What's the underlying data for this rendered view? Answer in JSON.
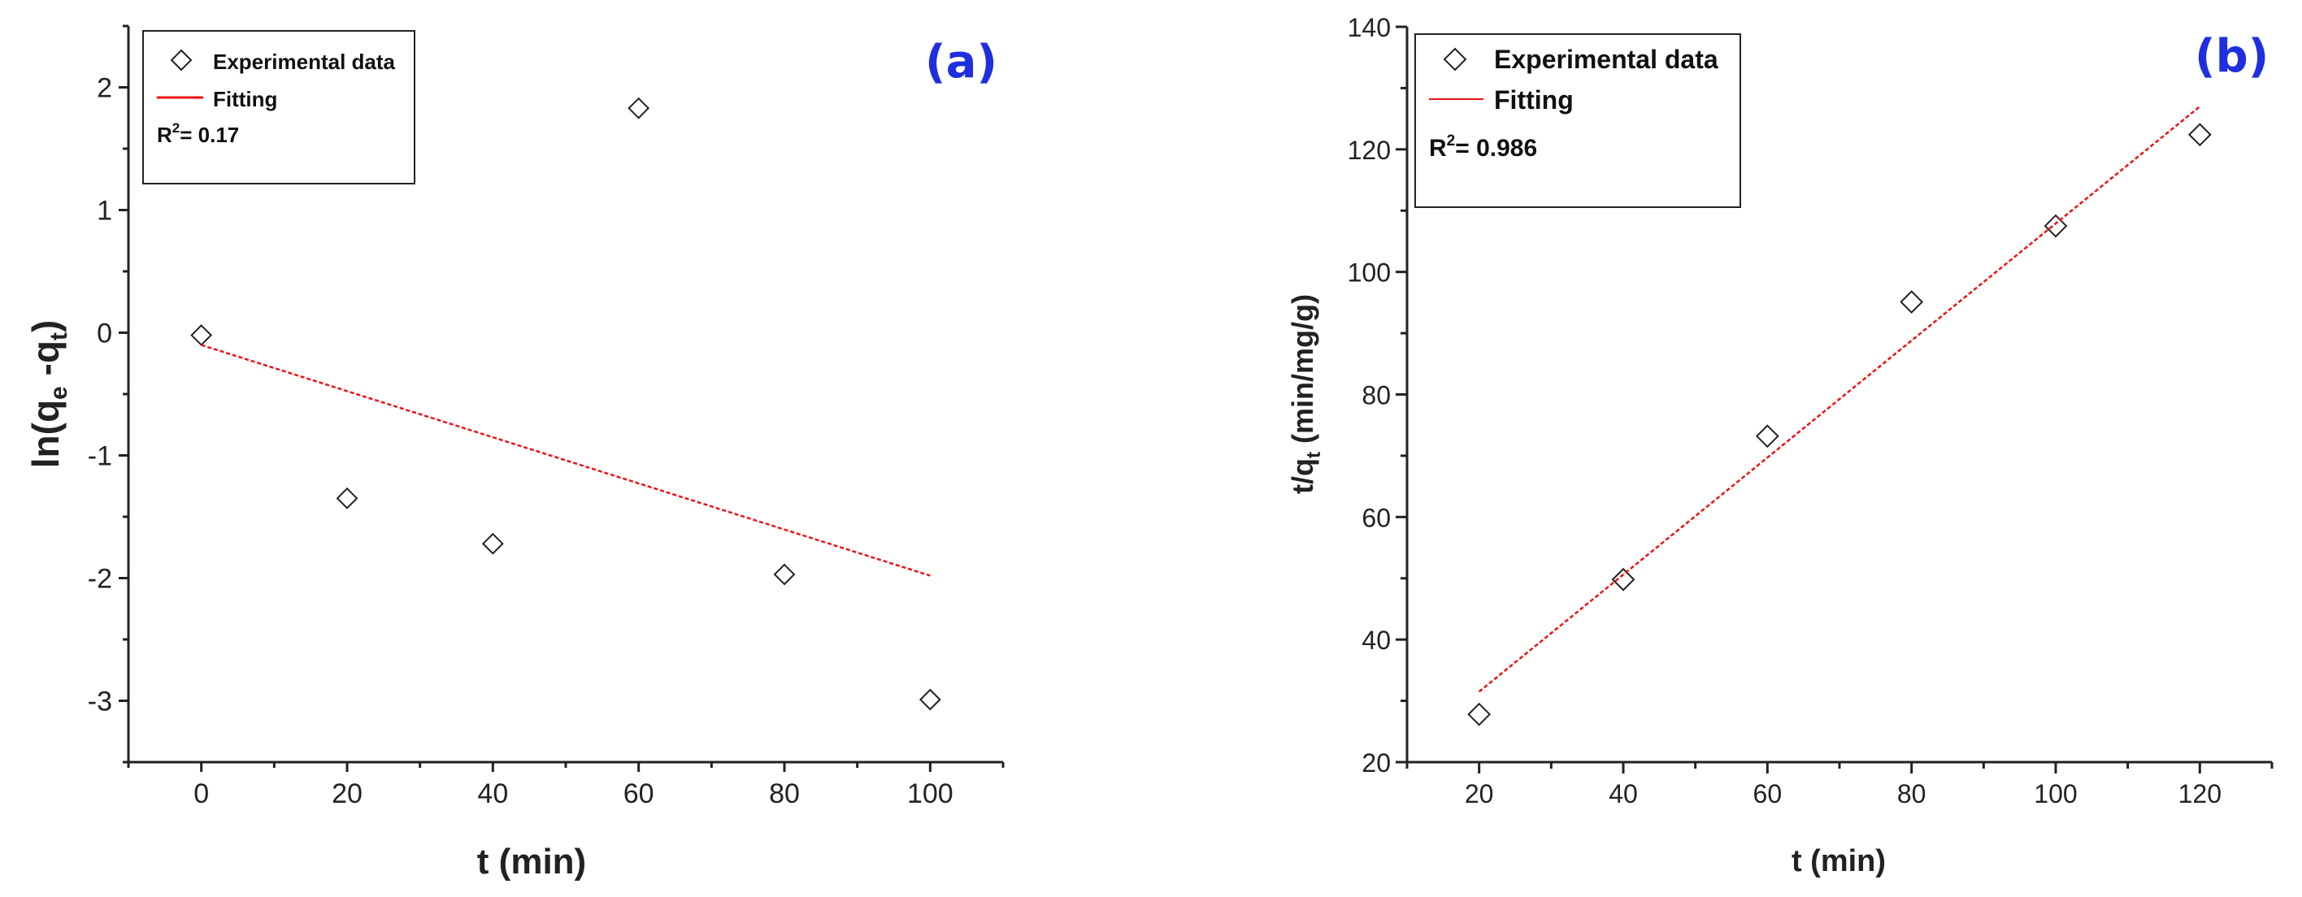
{
  "colors": {
    "fit": "#ee1111",
    "marker": "#222222",
    "axis": "#222222",
    "panel_tag": "#1f2fe0"
  },
  "chart_data": [
    {
      "type": "scatter",
      "panel_label": "(a)",
      "xlabel": "t (min)",
      "ylabel": {
        "prefix": "ln(q",
        "sub1": "e",
        "mid": " -q",
        "sub2": "t",
        "suffix": ")"
      },
      "xlim": [
        -10,
        110
      ],
      "ylim": [
        -3.5,
        2.5
      ],
      "xticks": [
        0,
        20,
        40,
        60,
        80,
        100
      ],
      "yticks": [
        -3,
        -2,
        -1,
        0,
        1,
        2
      ],
      "series": [
        {
          "name": "Experimental data",
          "kind": "markers",
          "x": [
            0,
            20,
            40,
            60,
            80,
            100
          ],
          "y": [
            -0.02,
            -1.35,
            -1.72,
            1.83,
            -1.97,
            -2.99
          ]
        },
        {
          "name": "Fitting",
          "kind": "line",
          "x": [
            0,
            100
          ],
          "y": [
            -0.1,
            -1.98
          ]
        }
      ],
      "legend": {
        "markers_label": "Experimental data",
        "line_label": "Fitting",
        "r2_prefix": "R",
        "r2_sup": "2",
        "r2_value": "= 0.17"
      }
    },
    {
      "type": "scatter",
      "panel_label": "(b)",
      "xlabel": "t (min)",
      "ylabel": {
        "prefix": "t/q",
        "sub1": "t",
        "suffix": " (min/mg/g)"
      },
      "xlim": [
        10,
        130
      ],
      "ylim": [
        20,
        140
      ],
      "xticks": [
        20,
        40,
        60,
        80,
        100,
        120
      ],
      "yticks": [
        20,
        40,
        60,
        80,
        100,
        120,
        140
      ],
      "series": [
        {
          "name": "Experimental data",
          "kind": "markers",
          "x": [
            20,
            40,
            60,
            80,
            100,
            120
          ],
          "y": [
            27.8,
            49.8,
            73.2,
            95.1,
            107.5,
            122.4
          ]
        },
        {
          "name": "Fitting",
          "kind": "line",
          "x": [
            20,
            120
          ],
          "y": [
            31.5,
            127
          ]
        }
      ],
      "legend": {
        "markers_label": "Experimental data",
        "line_label": "Fitting",
        "r2_prefix": "R",
        "r2_sup": "2",
        "r2_value": "= 0.986"
      }
    }
  ]
}
